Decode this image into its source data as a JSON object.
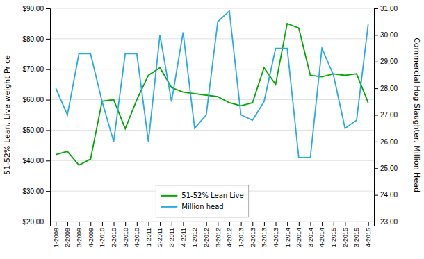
{
  "chart_data": {
    "type": "line",
    "categories": [
      "1-2009",
      "2-2009",
      "3-2009",
      "4-2009",
      "1-2010",
      "2-2010",
      "3-2010",
      "4-2010",
      "1-2011",
      "2-2011",
      "3-2011",
      "4-2011",
      "1-2012",
      "2-2012",
      "3-2012",
      "4-2012",
      "1-2013",
      "2-2013",
      "3-2013",
      "4-2013",
      "1-2014",
      "2-2014",
      "3-2014",
      "4-2014",
      "1-2015",
      "2-2015",
      "3-2015",
      "4-2015"
    ],
    "series": [
      {
        "name": "51-52% Lean Live",
        "color": "#00AA00",
        "values": [
          42.0,
          43.0,
          38.5,
          40.5,
          59.5,
          60.0,
          50.5,
          60.0,
          68.0,
          70.5,
          64.0,
          62.5,
          62.0,
          61.5,
          61.0,
          59.0,
          58.0,
          59.0,
          70.5,
          65.0,
          85.0,
          83.5,
          68.0,
          67.5,
          68.5,
          68.0,
          68.5,
          59.0
        ]
      },
      {
        "name": "Million head",
        "color": "#29ABE2",
        "axis": "y2",
        "values": [
          28.0,
          27.0,
          29.3,
          29.3,
          27.5,
          26.0,
          29.3,
          29.3,
          26.0,
          30.0,
          27.5,
          30.1,
          26.5,
          27.0,
          30.5,
          30.9,
          27.0,
          26.8,
          27.5,
          29.5,
          29.5,
          25.4,
          25.4,
          29.5,
          28.5,
          26.5,
          26.8,
          30.4
        ]
      }
    ],
    "ylabel": "51-52% Lean, Live weight Price",
    "y2label": "Commercial Hog Slaughter, Million Head",
    "ylim": [
      20,
      90
    ],
    "yticks": [
      {
        "value": 20,
        "label": "$20,00"
      },
      {
        "value": 30,
        "label": "$30,00"
      },
      {
        "value": 40,
        "label": "$40,00"
      },
      {
        "value": 50,
        "label": "$50,00"
      },
      {
        "value": 60,
        "label": "$60,00"
      },
      {
        "value": 70,
        "label": "$70,00"
      },
      {
        "value": 80,
        "label": "$80,00"
      },
      {
        "value": 90,
        "label": "$90,00"
      }
    ],
    "y2lim": [
      23,
      31
    ],
    "y2ticks": [
      {
        "value": 23,
        "label": "23,00"
      },
      {
        "value": 24,
        "label": "24,00"
      },
      {
        "value": 25,
        "label": "25,00"
      },
      {
        "value": 26,
        "label": "26,00"
      },
      {
        "value": 27,
        "label": "27,00"
      },
      {
        "value": 28,
        "label": "28,00"
      },
      {
        "value": 29,
        "label": "29,00"
      },
      {
        "value": 30,
        "label": "30,00"
      },
      {
        "value": 31,
        "label": "31,00"
      }
    ],
    "grid": true,
    "legend": "bottom"
  }
}
